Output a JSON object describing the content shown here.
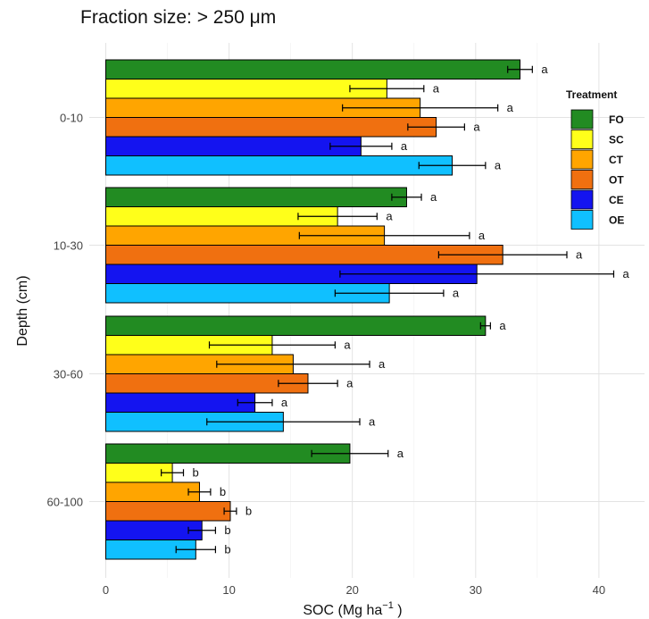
{
  "chart_data": {
    "type": "bar",
    "orientation": "horizontal",
    "title": "Fraction size: > 250 μm",
    "xlabel": "SOC (Mg ha",
    "xlabel_sup": "−1",
    "xlabel_suffix": " )",
    "ylabel": "Depth (cm)",
    "xlim": [
      0,
      44
    ],
    "xticks": [
      "0",
      "10",
      "20",
      "30",
      "40"
    ],
    "xtick_values": [
      0,
      10,
      20,
      30,
      40
    ],
    "grid": true,
    "legend_position": "right",
    "legend_title": "Treatment",
    "treatments": [
      {
        "name": "FO",
        "color": "#228B22"
      },
      {
        "name": "SC",
        "color": "#FFFF1A"
      },
      {
        "name": "CT",
        "color": "#FFA500"
      },
      {
        "name": "OT",
        "color": "#F07010"
      },
      {
        "name": "CE",
        "color": "#1414F0"
      },
      {
        "name": "OE",
        "color": "#10C0FF"
      }
    ],
    "groups": [
      {
        "depth": "0-10",
        "values": [
          33.6,
          22.8,
          25.5,
          26.8,
          20.7,
          28.1
        ],
        "errors": [
          1.0,
          3.0,
          6.3,
          2.3,
          2.5,
          2.7
        ],
        "letters": [
          "a",
          "a",
          "a",
          "a",
          "a",
          "a"
        ]
      },
      {
        "depth": "10-30",
        "values": [
          24.4,
          18.8,
          22.6,
          32.2,
          30.1,
          23.0
        ],
        "errors": [
          1.2,
          3.2,
          6.9,
          5.2,
          11.1,
          4.4
        ],
        "letters": [
          "a",
          "a",
          "a",
          "a",
          "a",
          "a"
        ]
      },
      {
        "depth": "30-60",
        "values": [
          30.8,
          13.5,
          15.2,
          16.4,
          12.1,
          14.4
        ],
        "errors": [
          0.4,
          5.1,
          6.2,
          2.4,
          1.4,
          6.2
        ],
        "letters": [
          "a",
          "a",
          "a",
          "a",
          "a",
          "a"
        ]
      },
      {
        "depth": "60-100",
        "values": [
          19.8,
          5.4,
          7.6,
          10.1,
          7.8,
          7.3
        ],
        "errors": [
          3.1,
          0.9,
          0.9,
          0.5,
          1.1,
          1.6
        ],
        "letters": [
          "a",
          "b",
          "b",
          "b",
          "b",
          "b"
        ]
      }
    ]
  }
}
